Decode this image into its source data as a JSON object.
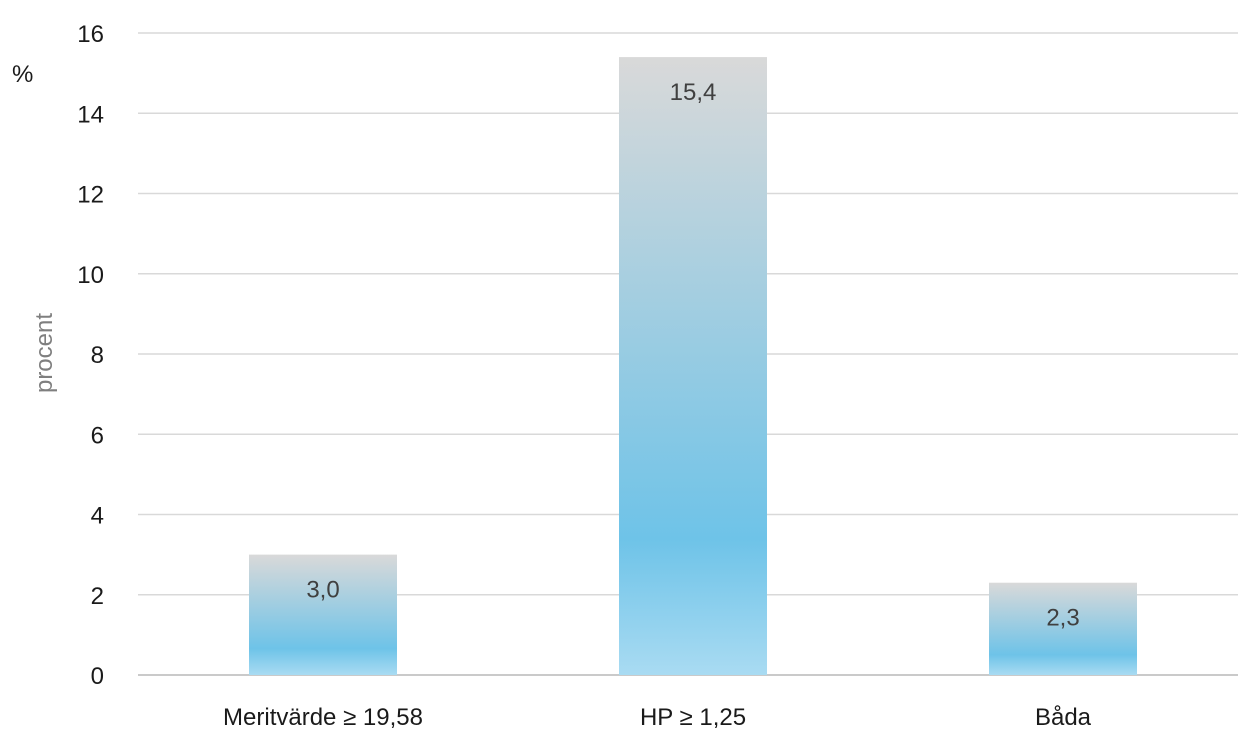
{
  "chart_data": {
    "type": "bar",
    "unit_label": "%",
    "ylabel": "procent",
    "xlabel": "",
    "title": "",
    "categories": [
      "Meritvärde ≥ 19,58",
      "HP ≥ 1,25",
      "Båda"
    ],
    "values": [
      3.0,
      15.4,
      2.3
    ],
    "data_labels": [
      "3,0",
      "15,4",
      "2,3"
    ],
    "ylim": [
      0,
      16
    ],
    "yticks": [
      0,
      2,
      4,
      6,
      8,
      10,
      12,
      14,
      16
    ],
    "grid": true,
    "legend": "none",
    "colors": {
      "bar_top": "#d9d9d9",
      "bar_mid": "#6ec3e8",
      "bar_bottom": "#a9dbf2",
      "grid": "#d9d9d9"
    }
  }
}
